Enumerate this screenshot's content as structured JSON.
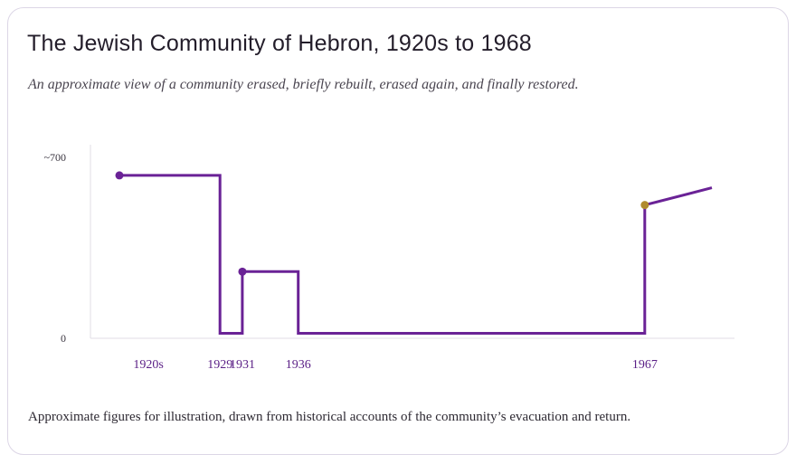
{
  "title": "The Jewish Community of Hebron, 1920s to 1968",
  "subtitle": "An approximate view of a community erased, briefly rebuilt, erased again, and finally restored.",
  "footnote": "Approximate figures for illustration, drawn from historical accounts of the community’s evacuation and return.",
  "colors": {
    "line": "#6a2296",
    "marker": "#6a2296",
    "highlight_marker": "#b08a2e",
    "axis": "#e0dce6"
  },
  "chart_data": {
    "type": "line",
    "step": true,
    "xlabel": "",
    "ylabel": "",
    "xlim": [
      1920,
      1973
    ],
    "ylim": [
      0,
      700
    ],
    "y_ticks": [
      {
        "value": 700,
        "label": "~700"
      },
      {
        "value": 0,
        "label": "0"
      }
    ],
    "x_ticks": [
      {
        "value": 1922.6,
        "label": "1920s"
      },
      {
        "value": 1929,
        "label": "1929"
      },
      {
        "value": 1931,
        "label": "1931"
      },
      {
        "value": 1936,
        "label": "1936"
      },
      {
        "value": 1967,
        "label": "1967"
      }
    ],
    "series": [
      {
        "points": [
          {
            "x": 1920,
            "y": 660
          },
          {
            "x": 1929,
            "y": 660
          },
          {
            "x": 1929,
            "y": 20
          },
          {
            "x": 1931,
            "y": 20
          },
          {
            "x": 1931,
            "y": 270
          },
          {
            "x": 1936,
            "y": 270
          },
          {
            "x": 1936,
            "y": 20
          },
          {
            "x": 1967,
            "y": 20
          },
          {
            "x": 1967,
            "y": 540
          },
          {
            "x": 1973,
            "y": 610
          }
        ],
        "markers": [
          {
            "x": 1920,
            "y": 660,
            "highlight": false
          },
          {
            "x": 1931,
            "y": 270,
            "highlight": false
          },
          {
            "x": 1967,
            "y": 540,
            "highlight": true
          }
        ]
      }
    ],
    "grid": false,
    "legend": "none"
  }
}
